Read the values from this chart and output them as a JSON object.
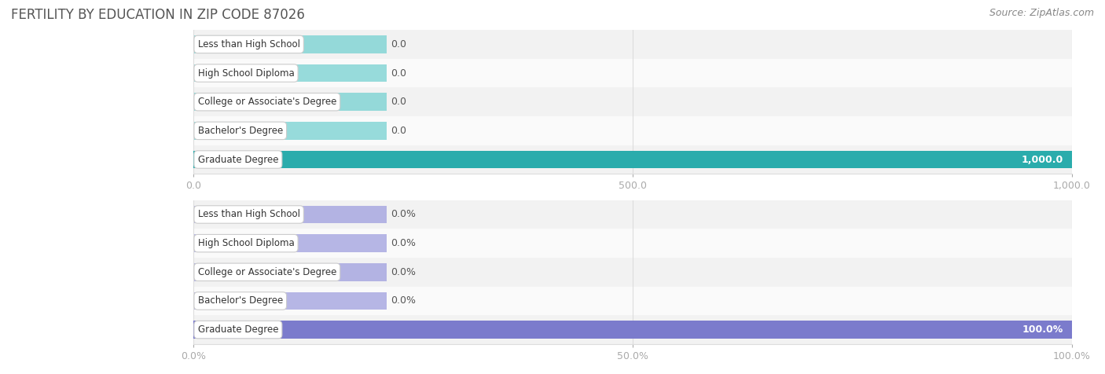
{
  "title": "FERTILITY BY EDUCATION IN ZIP CODE 87026",
  "source": "Source: ZipAtlas.com",
  "categories": [
    "Less than High School",
    "High School Diploma",
    "College or Associate's Degree",
    "Bachelor's Degree",
    "Graduate Degree"
  ],
  "values_abs": [
    0.0,
    0.0,
    0.0,
    0.0,
    1000.0
  ],
  "values_pct": [
    0.0,
    0.0,
    0.0,
    0.0,
    100.0
  ],
  "xlim_abs": [
    0,
    1000.0
  ],
  "xlim_pct": [
    0,
    100.0
  ],
  "xticks_abs": [
    0.0,
    500.0,
    1000.0
  ],
  "xticks_pct": [
    0.0,
    50.0,
    100.0
  ],
  "xtick_labels_abs": [
    "0.0",
    "500.0",
    "1,000.0"
  ],
  "xtick_labels_pct": [
    "0.0%",
    "50.0%",
    "100.0%"
  ],
  "bar_color_top_normal": "#6dcfcf",
  "bar_color_top_last": "#2aacac",
  "bar_color_bottom_normal": "#9999dd",
  "bar_color_bottom_last": "#7b7bcc",
  "row_bg_even": "#f2f2f2",
  "row_bg_odd": "#fafafa",
  "title_color": "#555555",
  "source_color": "#888888",
  "bar_height": 0.62,
  "fig_width": 14.06,
  "fig_height": 4.76,
  "abs_val_labels": [
    "0.0",
    "0.0",
    "0.0",
    "0.0",
    "1,000.0"
  ],
  "pct_val_labels": [
    "0.0%",
    "0.0%",
    "0.0%",
    "0.0%",
    "100.0%"
  ]
}
